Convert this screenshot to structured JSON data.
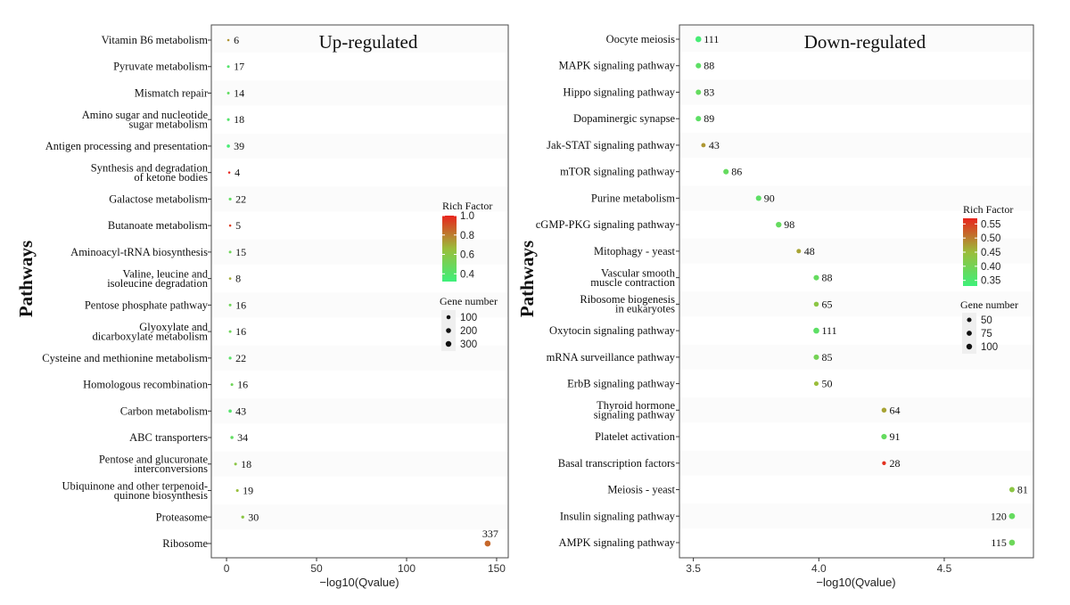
{
  "chart_data": [
    {
      "type": "scatter",
      "title": "Up-regulated",
      "ylabel": "Pathways",
      "xlabel": "−log10(Qvalue)",
      "xlim": [
        -3,
        152
      ],
      "xticks": [
        0,
        50,
        100,
        150
      ],
      "color_legend": {
        "title": "Rich Factor",
        "ticks": [
          "1.0",
          "0.8",
          "0.6",
          "0.4"
        ],
        "tick_values": [
          1.0,
          0.8,
          0.6,
          0.4
        ],
        "range": [
          0.32,
          1.0
        ]
      },
      "size_legend": {
        "title": "Gene number",
        "labels": [
          "100",
          "200",
          "300"
        ],
        "values": [
          100,
          200,
          300
        ]
      },
      "points": [
        {
          "pathway": [
            "Vitamin B6 metabolism"
          ],
          "x": 1,
          "genes": 6,
          "label": "6",
          "rich": 0.75
        },
        {
          "pathway": [
            "Pyruvate metabolism"
          ],
          "x": 1,
          "genes": 17,
          "label": "17",
          "rich": 0.4
        },
        {
          "pathway": [
            "Mismatch repair"
          ],
          "x": 1,
          "genes": 14,
          "label": "14",
          "rich": 0.45
        },
        {
          "pathway": [
            "Amino sugar and nucleotide",
            "sugar metabolism"
          ],
          "x": 1,
          "genes": 18,
          "label": "18",
          "rich": 0.4
        },
        {
          "pathway": [
            "Antigen processing and presentation"
          ],
          "x": 1,
          "genes": 39,
          "label": "39",
          "rich": 0.35
        },
        {
          "pathway": [
            "Synthesis and degradation",
            "of ketone bodies"
          ],
          "x": 1.5,
          "genes": 4,
          "label": "4",
          "rich": 1.0
        },
        {
          "pathway": [
            "Galactose metabolism"
          ],
          "x": 2,
          "genes": 22,
          "label": "22",
          "rich": 0.45
        },
        {
          "pathway": [
            "Butanoate metabolism"
          ],
          "x": 2,
          "genes": 5,
          "label": "5",
          "rich": 0.95
        },
        {
          "pathway": [
            "Aminoacyl-tRNA biosynthesis"
          ],
          "x": 2,
          "genes": 15,
          "label": "15",
          "rich": 0.5
        },
        {
          "pathway": [
            "Valine, leucine and",
            "isoleucine degradation"
          ],
          "x": 2,
          "genes": 8,
          "label": "8",
          "rich": 0.7
        },
        {
          "pathway": [
            "Pentose phosphate pathway"
          ],
          "x": 2,
          "genes": 16,
          "label": "16",
          "rich": 0.5
        },
        {
          "pathway": [
            "Glyoxylate and",
            "dicarboxylate metabolism"
          ],
          "x": 2,
          "genes": 16,
          "label": "16",
          "rich": 0.5
        },
        {
          "pathway": [
            "Cysteine and methionine metabolism"
          ],
          "x": 2,
          "genes": 22,
          "label": "22",
          "rich": 0.42
        },
        {
          "pathway": [
            "Homologous recombination"
          ],
          "x": 3,
          "genes": 16,
          "label": "16",
          "rich": 0.5
        },
        {
          "pathway": [
            "Carbon metabolism"
          ],
          "x": 2,
          "genes": 43,
          "label": "43",
          "rich": 0.4
        },
        {
          "pathway": [
            "ABC transporters"
          ],
          "x": 3,
          "genes": 34,
          "label": "34",
          "rich": 0.45
        },
        {
          "pathway": [
            "Pentose and glucuronate",
            "interconversions"
          ],
          "x": 5,
          "genes": 18,
          "label": "18",
          "rich": 0.6
        },
        {
          "pathway": [
            "Ubiquinone and other terpenoid-",
            "quinone biosynthesis"
          ],
          "x": 6,
          "genes": 19,
          "label": "19",
          "rich": 0.65
        },
        {
          "pathway": [
            "Proteasome"
          ],
          "x": 9,
          "genes": 30,
          "label": "30",
          "rich": 0.6
        },
        {
          "pathway": [
            "Ribosome"
          ],
          "x": 145,
          "genes": 337,
          "label": "337",
          "rich": 0.85
        }
      ]
    },
    {
      "type": "scatter",
      "title": "Down-regulated",
      "ylabel": "Pathways",
      "xlabel": "−log10(Qvalue)",
      "xlim": [
        3.48,
        4.82
      ],
      "xticks": [
        3.5,
        4.0,
        4.5
      ],
      "xtick_labels": [
        "3.5",
        "4.0",
        "4.5"
      ],
      "color_legend": {
        "title": "Rich Factor",
        "ticks": [
          "0.55",
          "0.50",
          "0.45",
          "0.40",
          "0.35"
        ],
        "tick_values": [
          0.55,
          0.5,
          0.45,
          0.4,
          0.35
        ],
        "range": [
          0.33,
          0.57
        ]
      },
      "size_legend": {
        "title": "Gene number",
        "labels": [
          "50",
          "75",
          "100"
        ],
        "values": [
          50,
          75,
          100
        ]
      },
      "points": [
        {
          "pathway": [
            "Oocyte meiosis"
          ],
          "x": 3.52,
          "genes": 111,
          "label": "111",
          "rich": 0.34
        },
        {
          "pathway": [
            "MAPK signaling pathway"
          ],
          "x": 3.52,
          "genes": 88,
          "label": "88",
          "rich": 0.37
        },
        {
          "pathway": [
            "Hippo signaling pathway"
          ],
          "x": 3.52,
          "genes": 83,
          "label": "83",
          "rich": 0.38
        },
        {
          "pathway": [
            "Dopaminergic synapse"
          ],
          "x": 3.52,
          "genes": 89,
          "label": "89",
          "rich": 0.37
        },
        {
          "pathway": [
            "Jak-STAT signaling pathway"
          ],
          "x": 3.54,
          "genes": 43,
          "label": "43",
          "rich": 0.48
        },
        {
          "pathway": [
            "mTOR signaling pathway"
          ],
          "x": 3.63,
          "genes": 86,
          "label": "86",
          "rich": 0.38
        },
        {
          "pathway": [
            "Purine metabolism"
          ],
          "x": 3.76,
          "genes": 90,
          "label": "90",
          "rich": 0.37
        },
        {
          "pathway": [
            "cGMP-PKG signaling pathway"
          ],
          "x": 3.84,
          "genes": 98,
          "label": "98",
          "rich": 0.38
        },
        {
          "pathway": [
            "Mitophagy - yeast"
          ],
          "x": 3.92,
          "genes": 48,
          "label": "48",
          "rich": 0.47
        },
        {
          "pathway": [
            "Vascular smooth",
            "muscle contraction"
          ],
          "x": 3.99,
          "genes": 88,
          "label": "88",
          "rich": 0.38
        },
        {
          "pathway": [
            "Ribosome biogenesis",
            "in eukaryotes"
          ],
          "x": 3.99,
          "genes": 65,
          "label": "65",
          "rich": 0.43
        },
        {
          "pathway": [
            "Oxytocin signaling pathway"
          ],
          "x": 3.99,
          "genes": 111,
          "label": "111",
          "rich": 0.37
        },
        {
          "pathway": [
            "mRNA surveillance pathway"
          ],
          "x": 3.99,
          "genes": 85,
          "label": "85",
          "rich": 0.4
        },
        {
          "pathway": [
            "ErbB signaling pathway"
          ],
          "x": 3.99,
          "genes": 50,
          "label": "50",
          "rich": 0.45
        },
        {
          "pathway": [
            "Thyroid hormone",
            "signaling pathway"
          ],
          "x": 4.26,
          "genes": 64,
          "label": "64",
          "rich": 0.47
        },
        {
          "pathway": [
            "Platelet activation"
          ],
          "x": 4.26,
          "genes": 91,
          "label": "91",
          "rich": 0.38
        },
        {
          "pathway": [
            "Basal transcription factors"
          ],
          "x": 4.26,
          "genes": 28,
          "label": "28",
          "rich": 0.56
        },
        {
          "pathway": [
            "Meiosis - yeast"
          ],
          "x": 4.77,
          "genes": 81,
          "label": "81",
          "rich": 0.43
        },
        {
          "pathway": [
            "Insulin signaling pathway"
          ],
          "x": 4.77,
          "genes": 120,
          "label": "120",
          "rich": 0.38
        },
        {
          "pathway": [
            "AMPK signaling pathway"
          ],
          "x": 4.77,
          "genes": 115,
          "label": "115",
          "rich": 0.39
        }
      ]
    }
  ]
}
